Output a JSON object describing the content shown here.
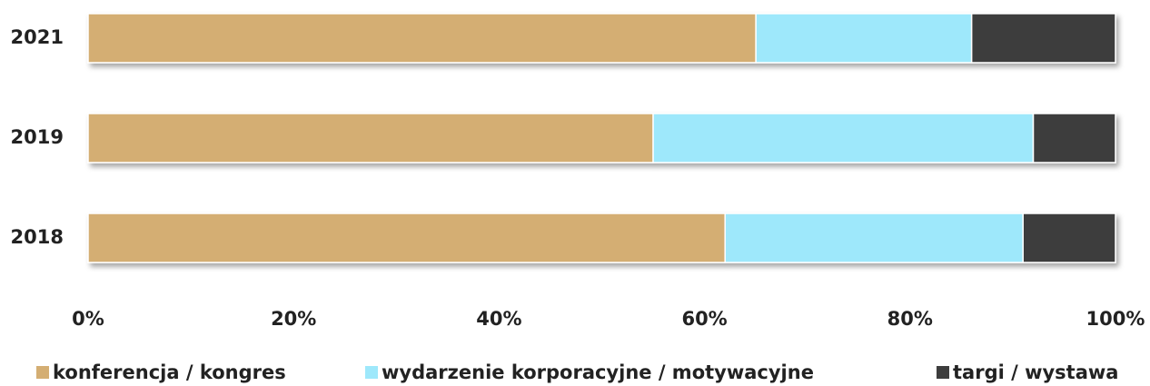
{
  "chart_data": {
    "type": "stacked_barh",
    "categories": [
      "2021",
      "2019",
      "2018"
    ],
    "series": [
      {
        "name": "konferencja / kongres",
        "color": "#d4ae73",
        "values": [
          65,
          55,
          62
        ]
      },
      {
        "name": "wydarzenie korporacyjne / motywacyjne",
        "color": "#9ee8fb",
        "values": [
          21,
          37,
          29
        ]
      },
      {
        "name": "targi / wystawa",
        "color": "#3d3d3d",
        "values": [
          14,
          8,
          9
        ]
      }
    ],
    "xlim": [
      0,
      100
    ],
    "xticks": [
      {
        "value": 0,
        "label": "0%"
      },
      {
        "value": 20,
        "label": "20%"
      },
      {
        "value": 40,
        "label": "40%"
      },
      {
        "value": 60,
        "label": "60%"
      },
      {
        "value": 80,
        "label": "80%"
      },
      {
        "value": 100,
        "label": "100%"
      }
    ],
    "legend": "bottom"
  }
}
